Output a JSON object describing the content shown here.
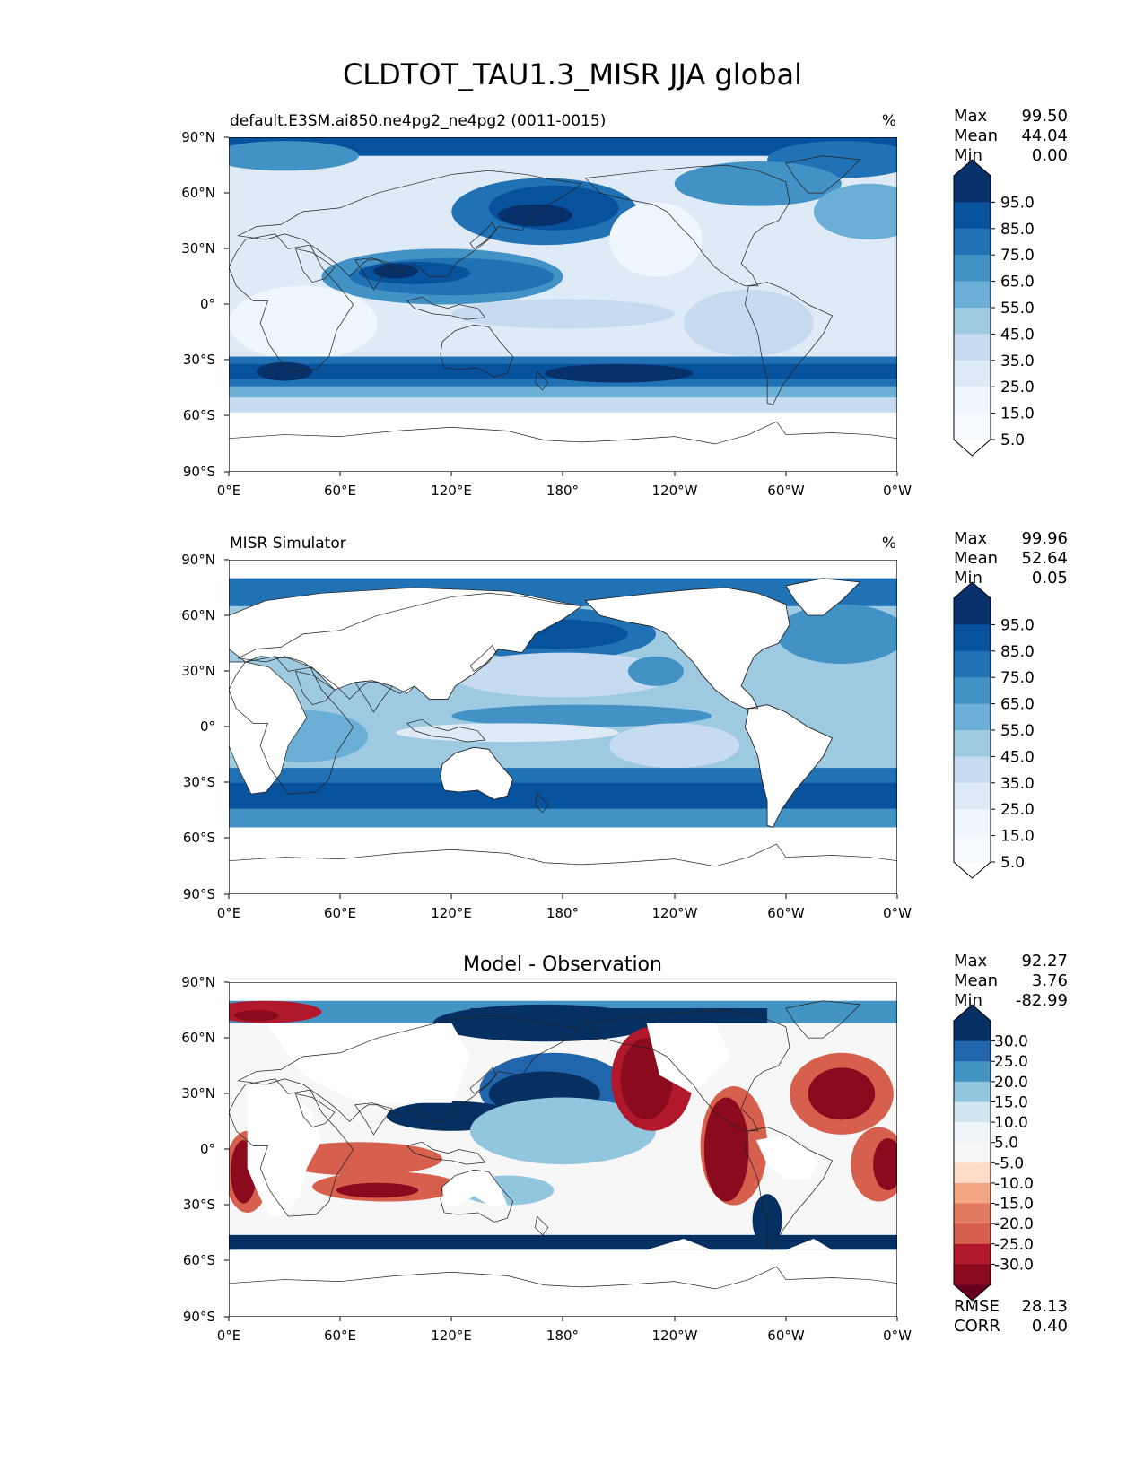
{
  "figure": {
    "title": "CLDTOT_TAU1.3_MISR JJA global"
  },
  "x_ticks": [
    "0°E",
    "60°E",
    "120°E",
    "180°",
    "120°W",
    "60°W",
    "0°W"
  ],
  "y_ticks": [
    "90°N",
    "60°N",
    "30°N",
    "0°",
    "30°S",
    "60°S",
    "90°S"
  ],
  "panels": [
    {
      "id": "model",
      "left_title": "default.E3SM.ai850.ne4pg2_ne4pg2 (0011-0015)",
      "center_title": "",
      "units": "%",
      "stats": [
        {
          "label": "Max",
          "value": "99.50"
        },
        {
          "label": "Mean",
          "value": "44.04"
        },
        {
          "label": "Min",
          "value": "0.00"
        }
      ],
      "colorbar_labels": [
        "95.0",
        "85.0",
        "75.0",
        "65.0",
        "55.0",
        "45.0",
        "35.0",
        "25.0",
        "15.0",
        "5.0"
      ],
      "colorbar_colors": [
        "#08306b",
        "#08519c",
        "#2171b5",
        "#4292c6",
        "#6baed6",
        "#9ecae1",
        "#c6dbef",
        "#deebf7",
        "#eff6fc",
        "#f7fbff"
      ],
      "colorbar_extend_colors": {
        "top": "#08306b",
        "bottom": "#ffffff"
      },
      "extra_stats": []
    },
    {
      "id": "obs",
      "left_title": "MISR Simulator",
      "center_title": "",
      "units": "%",
      "stats": [
        {
          "label": "Max",
          "value": "99.96"
        },
        {
          "label": "Mean",
          "value": "52.64"
        },
        {
          "label": "Min",
          "value": "0.05"
        }
      ],
      "colorbar_labels": [
        "95.0",
        "85.0",
        "75.0",
        "65.0",
        "55.0",
        "45.0",
        "35.0",
        "25.0",
        "15.0",
        "5.0"
      ],
      "colorbar_colors": [
        "#08306b",
        "#08519c",
        "#2171b5",
        "#4292c6",
        "#6baed6",
        "#9ecae1",
        "#c6dbef",
        "#deebf7",
        "#eff6fc",
        "#f7fbff"
      ],
      "colorbar_extend_colors": {
        "top": "#08306b",
        "bottom": "#ffffff"
      },
      "extra_stats": []
    },
    {
      "id": "diff",
      "left_title": "",
      "center_title": "Model - Observation",
      "units": "",
      "stats": [
        {
          "label": "Max",
          "value": "92.27"
        },
        {
          "label": "Mean",
          "value": "3.76"
        },
        {
          "label": "Min",
          "value": "-82.99"
        }
      ],
      "colorbar_labels": [
        "30.0",
        "25.0",
        "20.0",
        "15.0",
        "10.0",
        "5.0",
        "-5.0",
        "-10.0",
        "-15.0",
        "-20.0",
        "-25.0",
        "-30.0"
      ],
      "colorbar_colors": [
        "#053061",
        "#2166ac",
        "#4393c3",
        "#92c5de",
        "#d1e5f0",
        "#eef4f8",
        "#f7f7f7",
        "#fddbc7",
        "#f4a582",
        "#e07b5f",
        "#d6604d",
        "#b2182b",
        "#8b0a1e"
      ],
      "colorbar_extend_colors": {
        "top": "#053061",
        "bottom": "#67001f"
      },
      "extra_stats": [
        {
          "label": "RMSE",
          "value": "28.13"
        },
        {
          "label": "CORR",
          "value": "0.40"
        }
      ]
    }
  ]
}
